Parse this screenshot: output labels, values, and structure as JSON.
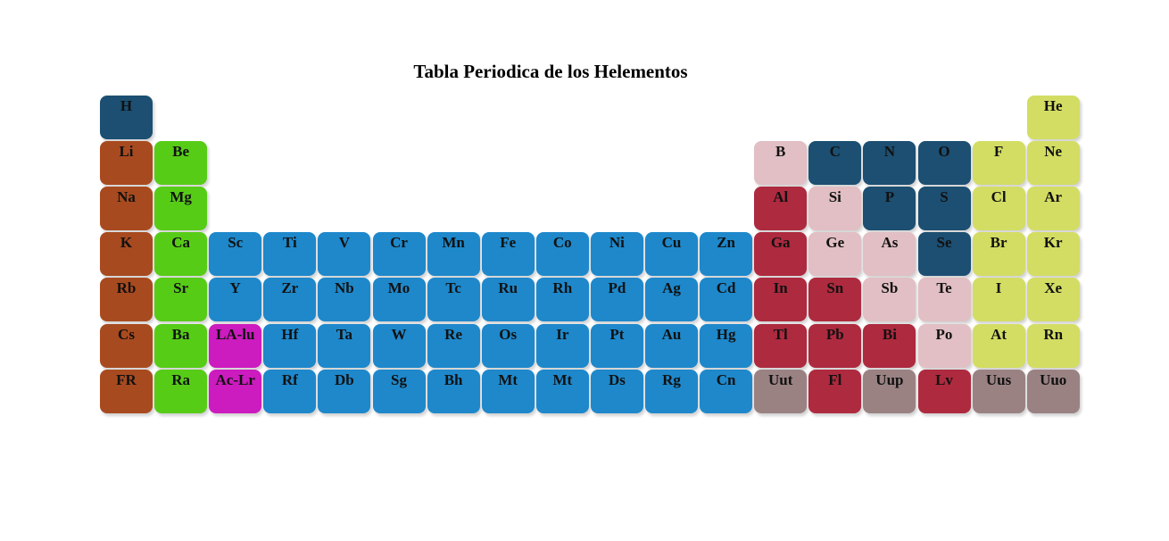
{
  "title": "Tabla Periodica de los Helementos",
  "colors": {
    "nonmetal": "#1c4f72",
    "alkali": "#a84a1f",
    "alkaline": "#57cc17",
    "transition": "#1e88cb",
    "metalloid": "#e1bfc4",
    "post_transition": "#ae2a3f",
    "halogen_noble": "#d3dd63",
    "unknown": "#9a8283",
    "lanthanide": "#cc1bbe"
  },
  "elements": [
    {
      "symbol": "H",
      "row": 0,
      "col": 0,
      "cat": "nonmetal"
    },
    {
      "symbol": "He",
      "row": 0,
      "col": 17,
      "cat": "halogen_noble"
    },
    {
      "symbol": "Li",
      "row": 1,
      "col": 0,
      "cat": "alkali"
    },
    {
      "symbol": "Be",
      "row": 1,
      "col": 1,
      "cat": "alkaline"
    },
    {
      "symbol": "B",
      "row": 1,
      "col": 12,
      "cat": "metalloid"
    },
    {
      "symbol": "C",
      "row": 1,
      "col": 13,
      "cat": "nonmetal"
    },
    {
      "symbol": "N",
      "row": 1,
      "col": 14,
      "cat": "nonmetal"
    },
    {
      "symbol": "O",
      "row": 1,
      "col": 15,
      "cat": "nonmetal"
    },
    {
      "symbol": "F",
      "row": 1,
      "col": 16,
      "cat": "halogen_noble"
    },
    {
      "symbol": "Ne",
      "row": 1,
      "col": 17,
      "cat": "halogen_noble"
    },
    {
      "symbol": "Na",
      "row": 2,
      "col": 0,
      "cat": "alkali"
    },
    {
      "symbol": "Mg",
      "row": 2,
      "col": 1,
      "cat": "alkaline"
    },
    {
      "symbol": "Al",
      "row": 2,
      "col": 12,
      "cat": "post_transition"
    },
    {
      "symbol": "Si",
      "row": 2,
      "col": 13,
      "cat": "metalloid"
    },
    {
      "symbol": "P",
      "row": 2,
      "col": 14,
      "cat": "nonmetal"
    },
    {
      "symbol": "S",
      "row": 2,
      "col": 15,
      "cat": "nonmetal"
    },
    {
      "symbol": "Cl",
      "row": 2,
      "col": 16,
      "cat": "halogen_noble"
    },
    {
      "symbol": "Ar",
      "row": 2,
      "col": 17,
      "cat": "halogen_noble"
    },
    {
      "symbol": "K",
      "row": 3,
      "col": 0,
      "cat": "alkali"
    },
    {
      "symbol": "Ca",
      "row": 3,
      "col": 1,
      "cat": "alkaline"
    },
    {
      "symbol": "Sc",
      "row": 3,
      "col": 2,
      "cat": "transition"
    },
    {
      "symbol": "Ti",
      "row": 3,
      "col": 3,
      "cat": "transition"
    },
    {
      "symbol": "V",
      "row": 3,
      "col": 4,
      "cat": "transition"
    },
    {
      "symbol": "Cr",
      "row": 3,
      "col": 5,
      "cat": "transition"
    },
    {
      "symbol": "Mn",
      "row": 3,
      "col": 6,
      "cat": "transition"
    },
    {
      "symbol": "Fe",
      "row": 3,
      "col": 7,
      "cat": "transition"
    },
    {
      "symbol": "Co",
      "row": 3,
      "col": 8,
      "cat": "transition"
    },
    {
      "symbol": "Ni",
      "row": 3,
      "col": 9,
      "cat": "transition"
    },
    {
      "symbol": "Cu",
      "row": 3,
      "col": 10,
      "cat": "transition"
    },
    {
      "symbol": "Zn",
      "row": 3,
      "col": 11,
      "cat": "transition"
    },
    {
      "symbol": "Ga",
      "row": 3,
      "col": 12,
      "cat": "post_transition"
    },
    {
      "symbol": "Ge",
      "row": 3,
      "col": 13,
      "cat": "metalloid"
    },
    {
      "symbol": "As",
      "row": 3,
      "col": 14,
      "cat": "metalloid"
    },
    {
      "symbol": "Se",
      "row": 3,
      "col": 15,
      "cat": "nonmetal"
    },
    {
      "symbol": "Br",
      "row": 3,
      "col": 16,
      "cat": "halogen_noble"
    },
    {
      "symbol": "Kr",
      "row": 3,
      "col": 17,
      "cat": "halogen_noble"
    },
    {
      "symbol": "Rb",
      "row": 4,
      "col": 0,
      "cat": "alkali"
    },
    {
      "symbol": "Sr",
      "row": 4,
      "col": 1,
      "cat": "alkaline"
    },
    {
      "symbol": "Y",
      "row": 4,
      "col": 2,
      "cat": "transition"
    },
    {
      "symbol": "Zr",
      "row": 4,
      "col": 3,
      "cat": "transition"
    },
    {
      "symbol": "Nb",
      "row": 4,
      "col": 4,
      "cat": "transition"
    },
    {
      "symbol": "Mo",
      "row": 4,
      "col": 5,
      "cat": "transition"
    },
    {
      "symbol": "Tc",
      "row": 4,
      "col": 6,
      "cat": "transition"
    },
    {
      "symbol": "Ru",
      "row": 4,
      "col": 7,
      "cat": "transition"
    },
    {
      "symbol": "Rh",
      "row": 4,
      "col": 8,
      "cat": "transition"
    },
    {
      "symbol": "Pd",
      "row": 4,
      "col": 9,
      "cat": "transition"
    },
    {
      "symbol": "Ag",
      "row": 4,
      "col": 10,
      "cat": "transition"
    },
    {
      "symbol": "Cd",
      "row": 4,
      "col": 11,
      "cat": "transition"
    },
    {
      "symbol": "In",
      "row": 4,
      "col": 12,
      "cat": "post_transition"
    },
    {
      "symbol": "Sn",
      "row": 4,
      "col": 13,
      "cat": "post_transition"
    },
    {
      "symbol": "Sb",
      "row": 4,
      "col": 14,
      "cat": "metalloid"
    },
    {
      "symbol": "Te",
      "row": 4,
      "col": 15,
      "cat": "metalloid"
    },
    {
      "symbol": "I",
      "row": 4,
      "col": 16,
      "cat": "halogen_noble"
    },
    {
      "symbol": "Xe",
      "row": 4,
      "col": 17,
      "cat": "halogen_noble"
    },
    {
      "symbol": "Cs",
      "row": 5,
      "col": 0,
      "cat": "alkali"
    },
    {
      "symbol": "Ba",
      "row": 5,
      "col": 1,
      "cat": "alkaline"
    },
    {
      "symbol": "LA-lu",
      "row": 5,
      "col": 2,
      "cat": "lanthanide"
    },
    {
      "symbol": "Hf",
      "row": 5,
      "col": 3,
      "cat": "transition"
    },
    {
      "symbol": "Ta",
      "row": 5,
      "col": 4,
      "cat": "transition"
    },
    {
      "symbol": "W",
      "row": 5,
      "col": 5,
      "cat": "transition"
    },
    {
      "symbol": "Re",
      "row": 5,
      "col": 6,
      "cat": "transition"
    },
    {
      "symbol": "Os",
      "row": 5,
      "col": 7,
      "cat": "transition"
    },
    {
      "symbol": "Ir",
      "row": 5,
      "col": 8,
      "cat": "transition"
    },
    {
      "symbol": "Pt",
      "row": 5,
      "col": 9,
      "cat": "transition"
    },
    {
      "symbol": "Au",
      "row": 5,
      "col": 10,
      "cat": "transition"
    },
    {
      "symbol": "Hg",
      "row": 5,
      "col": 11,
      "cat": "transition"
    },
    {
      "symbol": "Tl",
      "row": 5,
      "col": 12,
      "cat": "post_transition"
    },
    {
      "symbol": "Pb",
      "row": 5,
      "col": 13,
      "cat": "post_transition"
    },
    {
      "symbol": "Bi",
      "row": 5,
      "col": 14,
      "cat": "post_transition"
    },
    {
      "symbol": "Po",
      "row": 5,
      "col": 15,
      "cat": "metalloid"
    },
    {
      "symbol": "At",
      "row": 5,
      "col": 16,
      "cat": "halogen_noble"
    },
    {
      "symbol": "Rn",
      "row": 5,
      "col": 17,
      "cat": "halogen_noble"
    },
    {
      "symbol": "FR",
      "row": 6,
      "col": 0,
      "cat": "alkali"
    },
    {
      "symbol": "Ra",
      "row": 6,
      "col": 1,
      "cat": "alkaline"
    },
    {
      "symbol": "Ac-Lr",
      "row": 6,
      "col": 2,
      "cat": "lanthanide"
    },
    {
      "symbol": "Rf",
      "row": 6,
      "col": 3,
      "cat": "transition"
    },
    {
      "symbol": "Db",
      "row": 6,
      "col": 4,
      "cat": "transition"
    },
    {
      "symbol": "Sg",
      "row": 6,
      "col": 5,
      "cat": "transition"
    },
    {
      "symbol": "Bh",
      "row": 6,
      "col": 6,
      "cat": "transition"
    },
    {
      "symbol": "Mt",
      "row": 6,
      "col": 7,
      "cat": "transition"
    },
    {
      "symbol": "Mt",
      "row": 6,
      "col": 8,
      "cat": "transition"
    },
    {
      "symbol": "Ds",
      "row": 6,
      "col": 9,
      "cat": "transition"
    },
    {
      "symbol": "Rg",
      "row": 6,
      "col": 10,
      "cat": "transition"
    },
    {
      "symbol": "Cn",
      "row": 6,
      "col": 11,
      "cat": "transition"
    },
    {
      "symbol": "Uut",
      "row": 6,
      "col": 12,
      "cat": "unknown"
    },
    {
      "symbol": "Fl",
      "row": 6,
      "col": 13,
      "cat": "post_transition"
    },
    {
      "symbol": "Uup",
      "row": 6,
      "col": 14,
      "cat": "unknown"
    },
    {
      "symbol": "Lv",
      "row": 6,
      "col": 15,
      "cat": "post_transition"
    },
    {
      "symbol": "Uus",
      "row": 6,
      "col": 16,
      "cat": "unknown"
    },
    {
      "symbol": "Uuo",
      "row": 6,
      "col": 17,
      "cat": "unknown"
    }
  ]
}
